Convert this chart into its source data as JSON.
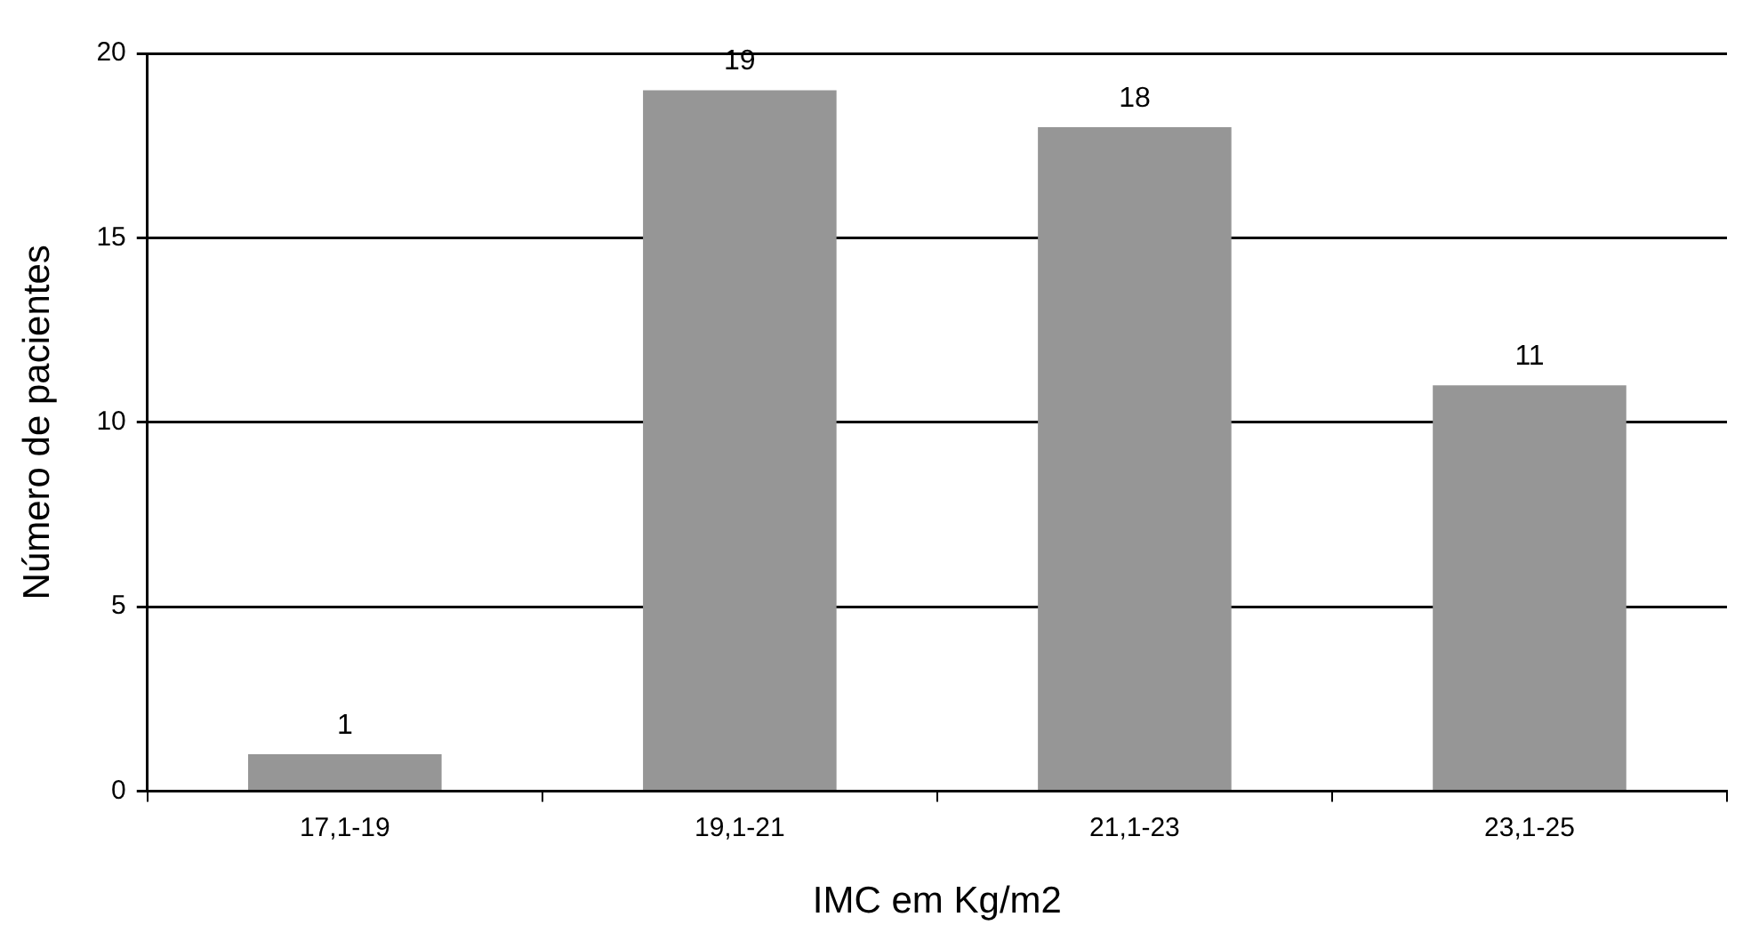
{
  "chart_data": {
    "type": "bar",
    "xlabel": "IMC em Kg/m2",
    "ylabel": "Número de pacientes",
    "categories": [
      "17,1-19",
      "19,1-21",
      "21,1-23",
      "23,1-25"
    ],
    "values": [
      1,
      19,
      18,
      11
    ],
    "color": "#969696",
    "ylim": [
      0,
      20
    ],
    "yticks": [
      0,
      5,
      10,
      15,
      20
    ],
    "grid": "y",
    "data_labels": true
  }
}
